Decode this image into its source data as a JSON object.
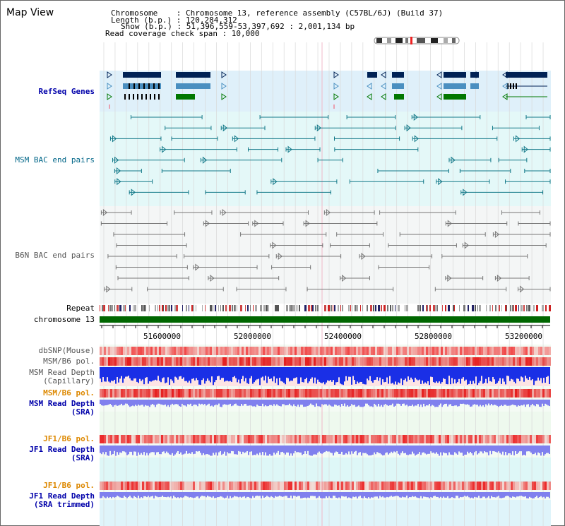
{
  "page": {
    "title": "Map View"
  },
  "info": {
    "chromosome_label": "Chromosome    : Chromosome 13, reference assembly (C57BL/6J) (Build 37)",
    "length_label": "Length (b.p.) : 120,284,312",
    "show_label": "Show (b.p.) : 51,396,559-53,397,692 : 2,001,134 bp",
    "coverage_label": "Read coverage check span : 10,000"
  },
  "tracks": {
    "refseq": "RefSeq Genes",
    "msm_bac": "MSM BAC end pairs",
    "b6n_bac": "B6N BAC end pairs",
    "repeat": "Repeat",
    "chromosome": "chromosome 13",
    "dbsnp": "dbSNP(Mouse)",
    "msm_b6_pol": "MSM/B6 pol.",
    "msm_read_cap_1": "MSM Read Depth",
    "msm_read_cap_2": "(Capillary)",
    "msm_b6_pol2": "MSM/B6 pol.",
    "msm_read_sra_1": "MSM Read Depth",
    "msm_read_sra_2": "(SRA)",
    "jf1_b6_pol": "JF1/B6 pol.",
    "jf1_read_sra_1": "JF1 Read Depth",
    "jf1_read_sra_2": "(SRA)",
    "jf1_b6_pol2": "JF1/B6 pol.",
    "jf1_read_trim_1": "JF1 Read Depth",
    "jf1_read_trim_2": "(SRA trimmed)"
  },
  "axis": {
    "ticks": [
      "51600000",
      "52000000",
      "52400000",
      "52800000",
      "53200000"
    ]
  },
  "colors": {
    "refseq_bg": "#dff0fa",
    "msm_bac_bg": "#e4f8f8",
    "b6n_bac_bg": "#f4f6f6",
    "chromosome_bar": "#006600",
    "gene_dark": "#002255",
    "gene_mid": "#4a8fc0",
    "gene_green": "#007700",
    "msm_bac_line": "#127888",
    "b6n_bac_line": "#777777",
    "read_depth_blue": "#1a2fe6",
    "sra_depth": "#8080ee",
    "pol_red": "#ee3333"
  }
}
